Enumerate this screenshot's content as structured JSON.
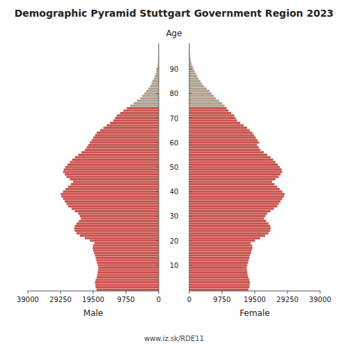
{
  "chart_data": {
    "type": "bar",
    "orientation": "horizontal",
    "title": "Demographic Pyramid Stuttgart Government Region 2023",
    "ylabel": "Age",
    "annotations": [
      "www.iz.sk/RDE11"
    ],
    "grid": false,
    "xlim": [
      0,
      39000
    ],
    "xticks": [
      0,
      9750,
      19500,
      29250,
      39000
    ],
    "ylim": [
      -0.5,
      100.5
    ],
    "yticks": [
      10,
      20,
      30,
      40,
      50,
      60,
      70,
      80,
      90
    ],
    "categories": [
      0,
      1,
      2,
      3,
      4,
      5,
      6,
      7,
      8,
      9,
      10,
      11,
      12,
      13,
      14,
      15,
      16,
      17,
      18,
      19,
      20,
      21,
      22,
      23,
      24,
      25,
      26,
      27,
      28,
      29,
      30,
      31,
      32,
      33,
      34,
      35,
      36,
      37,
      38,
      39,
      40,
      41,
      42,
      43,
      44,
      45,
      46,
      47,
      48,
      49,
      50,
      51,
      52,
      53,
      54,
      55,
      56,
      57,
      58,
      59,
      60,
      61,
      62,
      63,
      64,
      65,
      66,
      67,
      68,
      69,
      70,
      71,
      72,
      73,
      74,
      75,
      76,
      77,
      78,
      79,
      80,
      81,
      82,
      83,
      84,
      85,
      86,
      87,
      88,
      89,
      90,
      91,
      92,
      93,
      94,
      95,
      96,
      97,
      98,
      99
    ],
    "colors": [
      "#c9534e",
      "#c9534e",
      "#c9534e",
      "#c9534e",
      "#c9534e",
      "#c9534e",
      "#c9534e",
      "#c9534e",
      "#c9534e",
      "#c9534e",
      "#c9534e",
      "#c9534e",
      "#c9534e",
      "#c9534e",
      "#c9534e",
      "#c9534e",
      "#c9534e",
      "#c9534e",
      "#c9534e",
      "#c9534e",
      "#c9534e",
      "#c9534e",
      "#c9534e",
      "#c9534e",
      "#c9534e",
      "#c9534e",
      "#c9534e",
      "#c9534e",
      "#c9534e",
      "#c9534e",
      "#c9534e",
      "#c9534e",
      "#c9534e",
      "#c9534e",
      "#c9534e",
      "#c9534e",
      "#c9534e",
      "#c9534e",
      "#c9534e",
      "#c9534e",
      "#c9534e",
      "#c9534e",
      "#c9534e",
      "#c9534e",
      "#c9534e",
      "#c9534e",
      "#c9534e",
      "#c9534e",
      "#c9534e",
      "#c9534e",
      "#c9534e",
      "#c9534e",
      "#c9534e",
      "#c9534e",
      "#c9534e",
      "#c9534e",
      "#c9534e",
      "#c9534e",
      "#c9534e",
      "#c9534e",
      "#c9534e",
      "#c9534e",
      "#c9534e",
      "#c9534e",
      "#c9534e",
      "#c9534e",
      "#c9534e",
      "#c9534e",
      "#c9534e",
      "#c9534e",
      "#c9534e",
      "#c9534e",
      "#c9534e",
      "#c9534e",
      "#c9534e",
      "#b0a090",
      "#b0a090",
      "#b0a090",
      "#b0a090",
      "#b0a090",
      "#b0a090",
      "#b0a090",
      "#b0a090",
      "#b0a090",
      "#b0a090",
      "#b0a090",
      "#b0a090",
      "#b0a090",
      "#b0a090",
      "#b0a090",
      "#b0a090",
      "#b0a090",
      "#b0a090",
      "#b0a090",
      "#b0a090",
      "#b0a090",
      "#b0a090",
      "#b0a090",
      "#b0a090",
      "#b0a090"
    ],
    "series": [
      {
        "name": "Male",
        "values": [
          18500,
          18800,
          18900,
          19000,
          18800,
          18500,
          18300,
          18200,
          18100,
          18000,
          18200,
          18400,
          18600,
          18800,
          19000,
          19300,
          19500,
          19700,
          19600,
          19200,
          20500,
          22000,
          23500,
          24500,
          25000,
          25200,
          25000,
          24500,
          23800,
          23200,
          23500,
          24000,
          25000,
          26000,
          27000,
          27500,
          28000,
          28500,
          29000,
          29200,
          28500,
          27800,
          27000,
          26200,
          25500,
          26500,
          27500,
          28000,
          28500,
          28300,
          27800,
          27200,
          26500,
          25800,
          25000,
          24000,
          23000,
          22000,
          21500,
          21000,
          20500,
          20000,
          19500,
          19000,
          18500,
          17500,
          16500,
          15500,
          14500,
          13500,
          13000,
          12500,
          11500,
          10500,
          9500,
          8500,
          7500,
          6500,
          5500,
          5000,
          4300,
          3700,
          3100,
          2600,
          2200,
          1900,
          1500,
          1200,
          900,
          700,
          500,
          350,
          250,
          170,
          120,
          80,
          50,
          30,
          15,
          8
        ]
      },
      {
        "name": "Female",
        "values": [
          17600,
          17900,
          18000,
          18100,
          17900,
          17600,
          17400,
          17300,
          17200,
          17100,
          17300,
          17500,
          17700,
          17900,
          18100,
          18400,
          18600,
          18800,
          18700,
          18300,
          19600,
          21100,
          22600,
          23600,
          24100,
          24300,
          24100,
          23600,
          22900,
          22300,
          22700,
          23200,
          24200,
          25200,
          26200,
          26700,
          27200,
          27700,
          28200,
          28400,
          27700,
          27000,
          26200,
          25400,
          24700,
          25700,
          26700,
          27200,
          27700,
          27500,
          27000,
          26400,
          25700,
          25000,
          24200,
          23200,
          22200,
          21200,
          20700,
          20200,
          20800,
          20300,
          19800,
          19300,
          18800,
          18000,
          17200,
          16200,
          15200,
          14200,
          13800,
          13400,
          12500,
          11700,
          11100,
          10500,
          9800,
          8900,
          7900,
          7300,
          6700,
          6000,
          5200,
          4400,
          3800,
          3300,
          2800,
          2400,
          2000,
          1600,
          1300,
          1000,
          720,
          520,
          370,
          250,
          160,
          100,
          55,
          25
        ]
      }
    ]
  }
}
